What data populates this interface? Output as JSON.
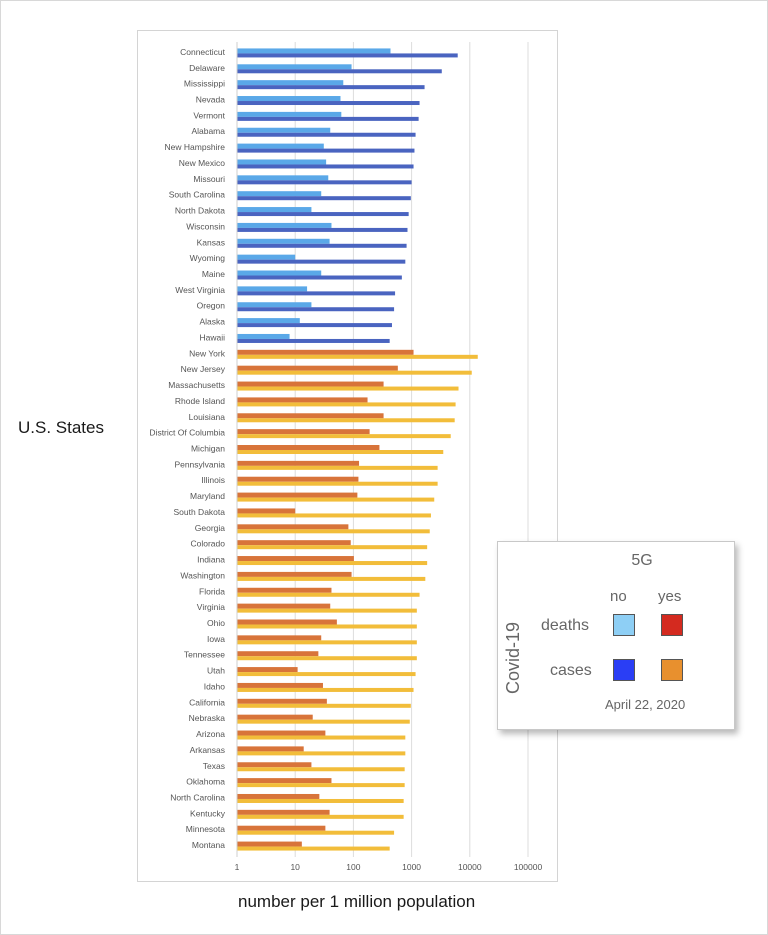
{
  "chart_data": {
    "type": "bar",
    "orientation": "horizontal",
    "title": "",
    "xlabel": "number per 1 million population",
    "ylabel": "U.S. States",
    "xscale": "log",
    "xlim": [
      1,
      100000
    ],
    "xticks": [
      "1",
      "10",
      "100",
      "1000",
      "10000",
      "100000"
    ],
    "grid": true,
    "legend": {
      "placement": "right",
      "title": "5G",
      "row_title": "Covid-19",
      "columns": [
        "no",
        "yes"
      ],
      "rows": [
        "deaths",
        "cases"
      ],
      "date": "April 22, 2020",
      "colors": {
        "deaths_no": "#8ecff5",
        "deaths_yes": "#d42a1f",
        "cases_no": "#2a3ef5",
        "cases_yes": "#e8902e"
      }
    },
    "bar_colors": {
      "deaths_no_5g": "#5aa8e8",
      "cases_no_5g": "#4a64c0",
      "deaths_5g": "#d8743a",
      "cases_5g": "#f2bd3a"
    },
    "categories": [
      "Connecticut",
      "Delaware",
      "Mississippi",
      "Nevada",
      "Vermont",
      "Alabama",
      "New Hampshire",
      "New Mexico",
      "Missouri",
      "South Carolina",
      "North Dakota",
      "Wisconsin",
      "Kansas",
      "Wyoming",
      "Maine",
      "West Virginia",
      "Oregon",
      "Alaska",
      "Hawaii",
      "New York",
      "New Jersey",
      "Massachusetts",
      "Rhode Island",
      "Louisiana",
      "District Of Columbia",
      "Michigan",
      "Pennsylvania",
      "Illinois",
      "Maryland",
      "South Dakota",
      "Georgia",
      "Colorado",
      "Indiana",
      "Washington",
      "Florida",
      "Virginia",
      "Ohio",
      "Iowa",
      "Tennessee",
      "Utah",
      "Idaho",
      "California",
      "Nebraska",
      "Arizona",
      "Arkansas",
      "Texas",
      "Oklahoma",
      "North Carolina",
      "Kentucky",
      "Minnesota",
      "Montana"
    ],
    "has_5g": [
      "no",
      "no",
      "no",
      "no",
      "no",
      "no",
      "no",
      "no",
      "no",
      "no",
      "no",
      "no",
      "no",
      "no",
      "no",
      "no",
      "no",
      "no",
      "no",
      "yes",
      "yes",
      "yes",
      "yes",
      "yes",
      "yes",
      "yes",
      "yes",
      "yes",
      "yes",
      "yes",
      "yes",
      "yes",
      "yes",
      "yes",
      "yes",
      "yes",
      "yes",
      "yes",
      "yes",
      "yes",
      "yes",
      "yes",
      "yes",
      "yes",
      "yes",
      "yes",
      "yes",
      "yes",
      "yes",
      "yes",
      "yes"
    ],
    "series": [
      {
        "name": "deaths",
        "values": [
          434,
          93,
          67,
          60,
          62,
          40,
          31,
          34,
          37,
          28,
          19,
          42,
          39,
          10,
          28,
          16,
          19,
          12,
          8,
          1080,
          580,
          330,
          175,
          330,
          190,
          280,
          125,
          122,
          117,
          10,
          82,
          90,
          102,
          93,
          42,
          40,
          52,
          28,
          25,
          11,
          30,
          35,
          20,
          33,
          14,
          19,
          42,
          26,
          39,
          33,
          13
        ]
      },
      {
        "name": "cases",
        "values": [
          6200,
          3300,
          1670,
          1370,
          1320,
          1170,
          1120,
          1080,
          1000,
          970,
          890,
          850,
          820,
          780,
          680,
          520,
          500,
          460,
          420,
          13700,
          10800,
          6400,
          5700,
          5500,
          4700,
          3500,
          2800,
          2800,
          2450,
          2150,
          2050,
          1850,
          1850,
          1720,
          1370,
          1230,
          1230,
          1230,
          1230,
          1170,
          1080,
          970,
          930,
          780,
          780,
          760,
          760,
          730,
          730,
          500,
          420
        ]
      }
    ]
  }
}
